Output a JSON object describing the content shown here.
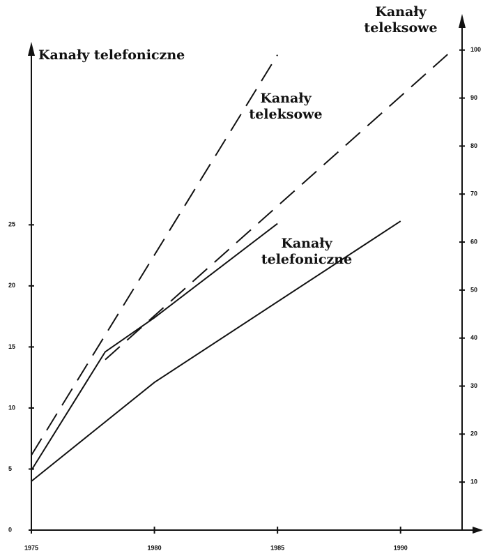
{
  "chart_data": {
    "type": "line",
    "y_label": "Kanały telefoniczne",
    "y2_label": "Kanały teleksowe",
    "annotations": [
      "Kanały teleksowe",
      "Kanały telefoniczne"
    ],
    "xlim": [
      1975,
      1992.5
    ],
    "xticks": [
      1975,
      1980,
      1985,
      1990
    ],
    "ylim": [
      0,
      39.7
    ],
    "yticks": [
      0,
      5,
      10,
      15,
      20,
      25
    ],
    "y2lim": [
      0,
      102
    ],
    "y2ticks": [
      10,
      20,
      30,
      40,
      50,
      60,
      70,
      80,
      90,
      100
    ],
    "series": [
      {
        "color": "#111111",
        "line_style": "solid",
        "x": [
          1975,
          1980,
          1990
        ],
        "values": [
          4,
          12.1,
          25.3
        ]
      },
      {
        "color": "#111111",
        "line_style": "solid",
        "x": [
          1975,
          1978,
          1980,
          1985
        ],
        "values": [
          4.9,
          14.6,
          17.4,
          25.1
        ]
      },
      {
        "color": "#111111",
        "line_style": "dashed",
        "axis": "y2",
        "x": [
          1975,
          1985
        ],
        "values": [
          15.6,
          99
        ]
      },
      {
        "color": "#111111",
        "line_style": "dashed",
        "axis": "y2",
        "x": [
          1978,
          1992
        ],
        "values": [
          35.5,
          99.5
        ]
      }
    ]
  }
}
